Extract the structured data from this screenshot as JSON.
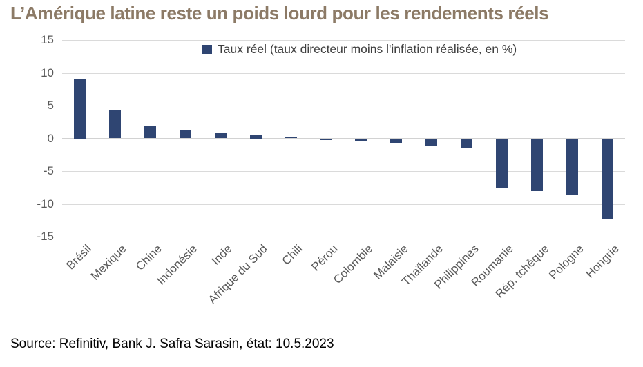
{
  "title": "L’Amérique latine reste un poids lourd pour les rendements réels",
  "legend": {
    "label": "Taux réel (taux directeur moins l'inflation réalisée, en %)",
    "marker": "legend-square",
    "marker_color": "#2f4572"
  },
  "source": "Source: Refinitiv, Bank J. Safra Sarasin, état: 10.5.2023",
  "colors": {
    "bar": "#2f4572",
    "gridline": "#dadada",
    "zero_line": "#d2d2d2",
    "axis_text": "#595959",
    "title_text": "#8c7a66",
    "legend_text": "#3f3f3f",
    "source_text": "#000000",
    "background": "#ffffff"
  },
  "chart_data": {
    "type": "bar",
    "title": "L’Amérique latine reste un poids lourd pour les rendements réels",
    "legend_entries": [
      "Taux réel (taux directeur moins l'inflation réalisée, en %)"
    ],
    "legend_position": "top-center",
    "categories": [
      "Brésil",
      "Mexique",
      "Chine",
      "Indonésie",
      "Inde",
      "Afrique du Sud",
      "Chili",
      "Pérou",
      "Colombie",
      "Malaisie",
      "Thaïlande",
      "Philippines",
      "Roumanie",
      "Rép. tchèque",
      "Pologne",
      "Hongrie"
    ],
    "values": [
      9.0,
      4.4,
      1.9,
      1.3,
      0.8,
      0.5,
      0.2,
      -0.3,
      -0.5,
      -0.8,
      -1.1,
      -1.4,
      -7.5,
      -8.1,
      -8.6,
      -12.3
    ],
    "xlabel": "",
    "ylabel": "",
    "ylim": [
      -15,
      15
    ],
    "yticks": [
      15,
      10,
      5,
      0,
      -5,
      -10,
      -15
    ],
    "grid": true,
    "xlabel_rotation_deg": 45
  }
}
